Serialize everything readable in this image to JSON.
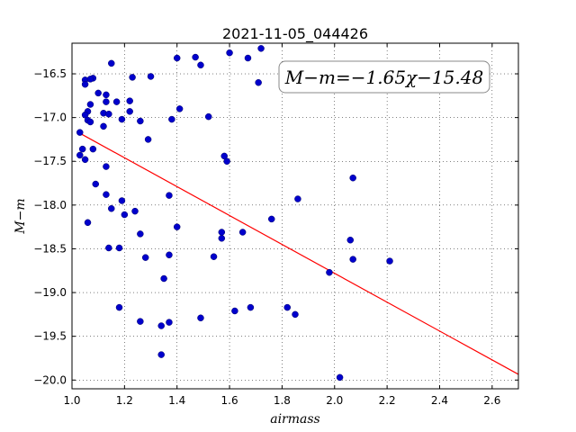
{
  "chart_data": {
    "type": "scatter",
    "title": "2021-11-05_044426",
    "xlabel": "airmass",
    "ylabel": "M−m",
    "annotation": "M−m=−1.65χ−15.48",
    "xlim": [
      1.0,
      2.7
    ],
    "ylim": [
      -20.1,
      -16.15
    ],
    "xticks": [
      1.0,
      1.2,
      1.4,
      1.6,
      1.8,
      2.0,
      2.2,
      2.4,
      2.6
    ],
    "xtick_labels": [
      "1.0",
      "1.2",
      "1.4",
      "1.6",
      "1.8",
      "2.0",
      "2.2",
      "2.4",
      "2.6"
    ],
    "yticks": [
      -16.5,
      -17.0,
      -17.5,
      -18.0,
      -18.5,
      -19.0,
      -19.5,
      -20.0
    ],
    "ytick_labels": [
      "−16.5",
      "−17.0",
      "−17.5",
      "−18.0",
      "−18.5",
      "−19.0",
      "−19.5",
      "−20.0"
    ],
    "grid": true,
    "colors": {
      "points": "#0000cc",
      "fit_line": "#ff0000"
    },
    "fit": {
      "slope": -1.65,
      "intercept": -15.48
    },
    "points": [
      {
        "x": 1.03,
        "y": -17.17
      },
      {
        "x": 1.04,
        "y": -17.36
      },
      {
        "x": 1.03,
        "y": -17.43
      },
      {
        "x": 1.05,
        "y": -17.48
      },
      {
        "x": 1.05,
        "y": -16.57
      },
      {
        "x": 1.05,
        "y": -16.62
      },
      {
        "x": 1.06,
        "y": -16.93
      },
      {
        "x": 1.05,
        "y": -16.97
      },
      {
        "x": 1.06,
        "y": -17.03
      },
      {
        "x": 1.07,
        "y": -17.05
      },
      {
        "x": 1.07,
        "y": -16.85
      },
      {
        "x": 1.08,
        "y": -16.55
      },
      {
        "x": 1.07,
        "y": -16.56
      },
      {
        "x": 1.06,
        "y": -18.2
      },
      {
        "x": 1.08,
        "y": -17.36
      },
      {
        "x": 1.09,
        "y": -17.76
      },
      {
        "x": 1.1,
        "y": -16.72
      },
      {
        "x": 1.12,
        "y": -16.95
      },
      {
        "x": 1.12,
        "y": -17.1
      },
      {
        "x": 1.13,
        "y": -16.74
      },
      {
        "x": 1.13,
        "y": -16.82
      },
      {
        "x": 1.14,
        "y": -16.96
      },
      {
        "x": 1.13,
        "y": -17.56
      },
      {
        "x": 1.13,
        "y": -17.88
      },
      {
        "x": 1.15,
        "y": -18.04
      },
      {
        "x": 1.14,
        "y": -18.49
      },
      {
        "x": 1.15,
        "y": -16.38
      },
      {
        "x": 1.17,
        "y": -16.82
      },
      {
        "x": 1.19,
        "y": -17.02
      },
      {
        "x": 1.19,
        "y": -17.95
      },
      {
        "x": 1.2,
        "y": -18.11
      },
      {
        "x": 1.18,
        "y": -18.49
      },
      {
        "x": 1.18,
        "y": -19.17
      },
      {
        "x": 1.22,
        "y": -16.81
      },
      {
        "x": 1.23,
        "y": -16.54
      },
      {
        "x": 1.22,
        "y": -16.93
      },
      {
        "x": 1.26,
        "y": -17.04
      },
      {
        "x": 1.24,
        "y": -18.07
      },
      {
        "x": 1.26,
        "y": -18.33
      },
      {
        "x": 1.28,
        "y": -18.6
      },
      {
        "x": 1.26,
        "y": -19.33
      },
      {
        "x": 1.29,
        "y": -17.25
      },
      {
        "x": 1.3,
        "y": -16.53
      },
      {
        "x": 1.34,
        "y": -19.71
      },
      {
        "x": 1.35,
        "y": -18.84
      },
      {
        "x": 1.34,
        "y": -19.38
      },
      {
        "x": 1.37,
        "y": -19.34
      },
      {
        "x": 1.37,
        "y": -18.57
      },
      {
        "x": 1.37,
        "y": -17.89
      },
      {
        "x": 1.38,
        "y": -17.02
      },
      {
        "x": 1.4,
        "y": -16.32
      },
      {
        "x": 1.4,
        "y": -18.25
      },
      {
        "x": 1.41,
        "y": -16.9
      },
      {
        "x": 1.47,
        "y": -16.31
      },
      {
        "x": 1.49,
        "y": -16.4
      },
      {
        "x": 1.49,
        "y": -19.29
      },
      {
        "x": 1.52,
        "y": -16.99
      },
      {
        "x": 1.54,
        "y": -18.59
      },
      {
        "x": 1.57,
        "y": -18.38
      },
      {
        "x": 1.57,
        "y": -18.31
      },
      {
        "x": 1.58,
        "y": -17.44
      },
      {
        "x": 1.59,
        "y": -17.5
      },
      {
        "x": 1.6,
        "y": -16.26
      },
      {
        "x": 1.62,
        "y": -19.21
      },
      {
        "x": 1.65,
        "y": -18.31
      },
      {
        "x": 1.67,
        "y": -16.32
      },
      {
        "x": 1.68,
        "y": -19.17
      },
      {
        "x": 1.71,
        "y": -16.6
      },
      {
        "x": 1.72,
        "y": -16.21
      },
      {
        "x": 1.76,
        "y": -18.16
      },
      {
        "x": 1.82,
        "y": -19.17
      },
      {
        "x": 1.85,
        "y": -19.25
      },
      {
        "x": 1.86,
        "y": -17.93
      },
      {
        "x": 1.98,
        "y": -18.77
      },
      {
        "x": 2.02,
        "y": -19.97
      },
      {
        "x": 2.06,
        "y": -18.4
      },
      {
        "x": 2.07,
        "y": -18.62
      },
      {
        "x": 2.07,
        "y": -17.69
      },
      {
        "x": 2.21,
        "y": -18.64
      }
    ]
  }
}
